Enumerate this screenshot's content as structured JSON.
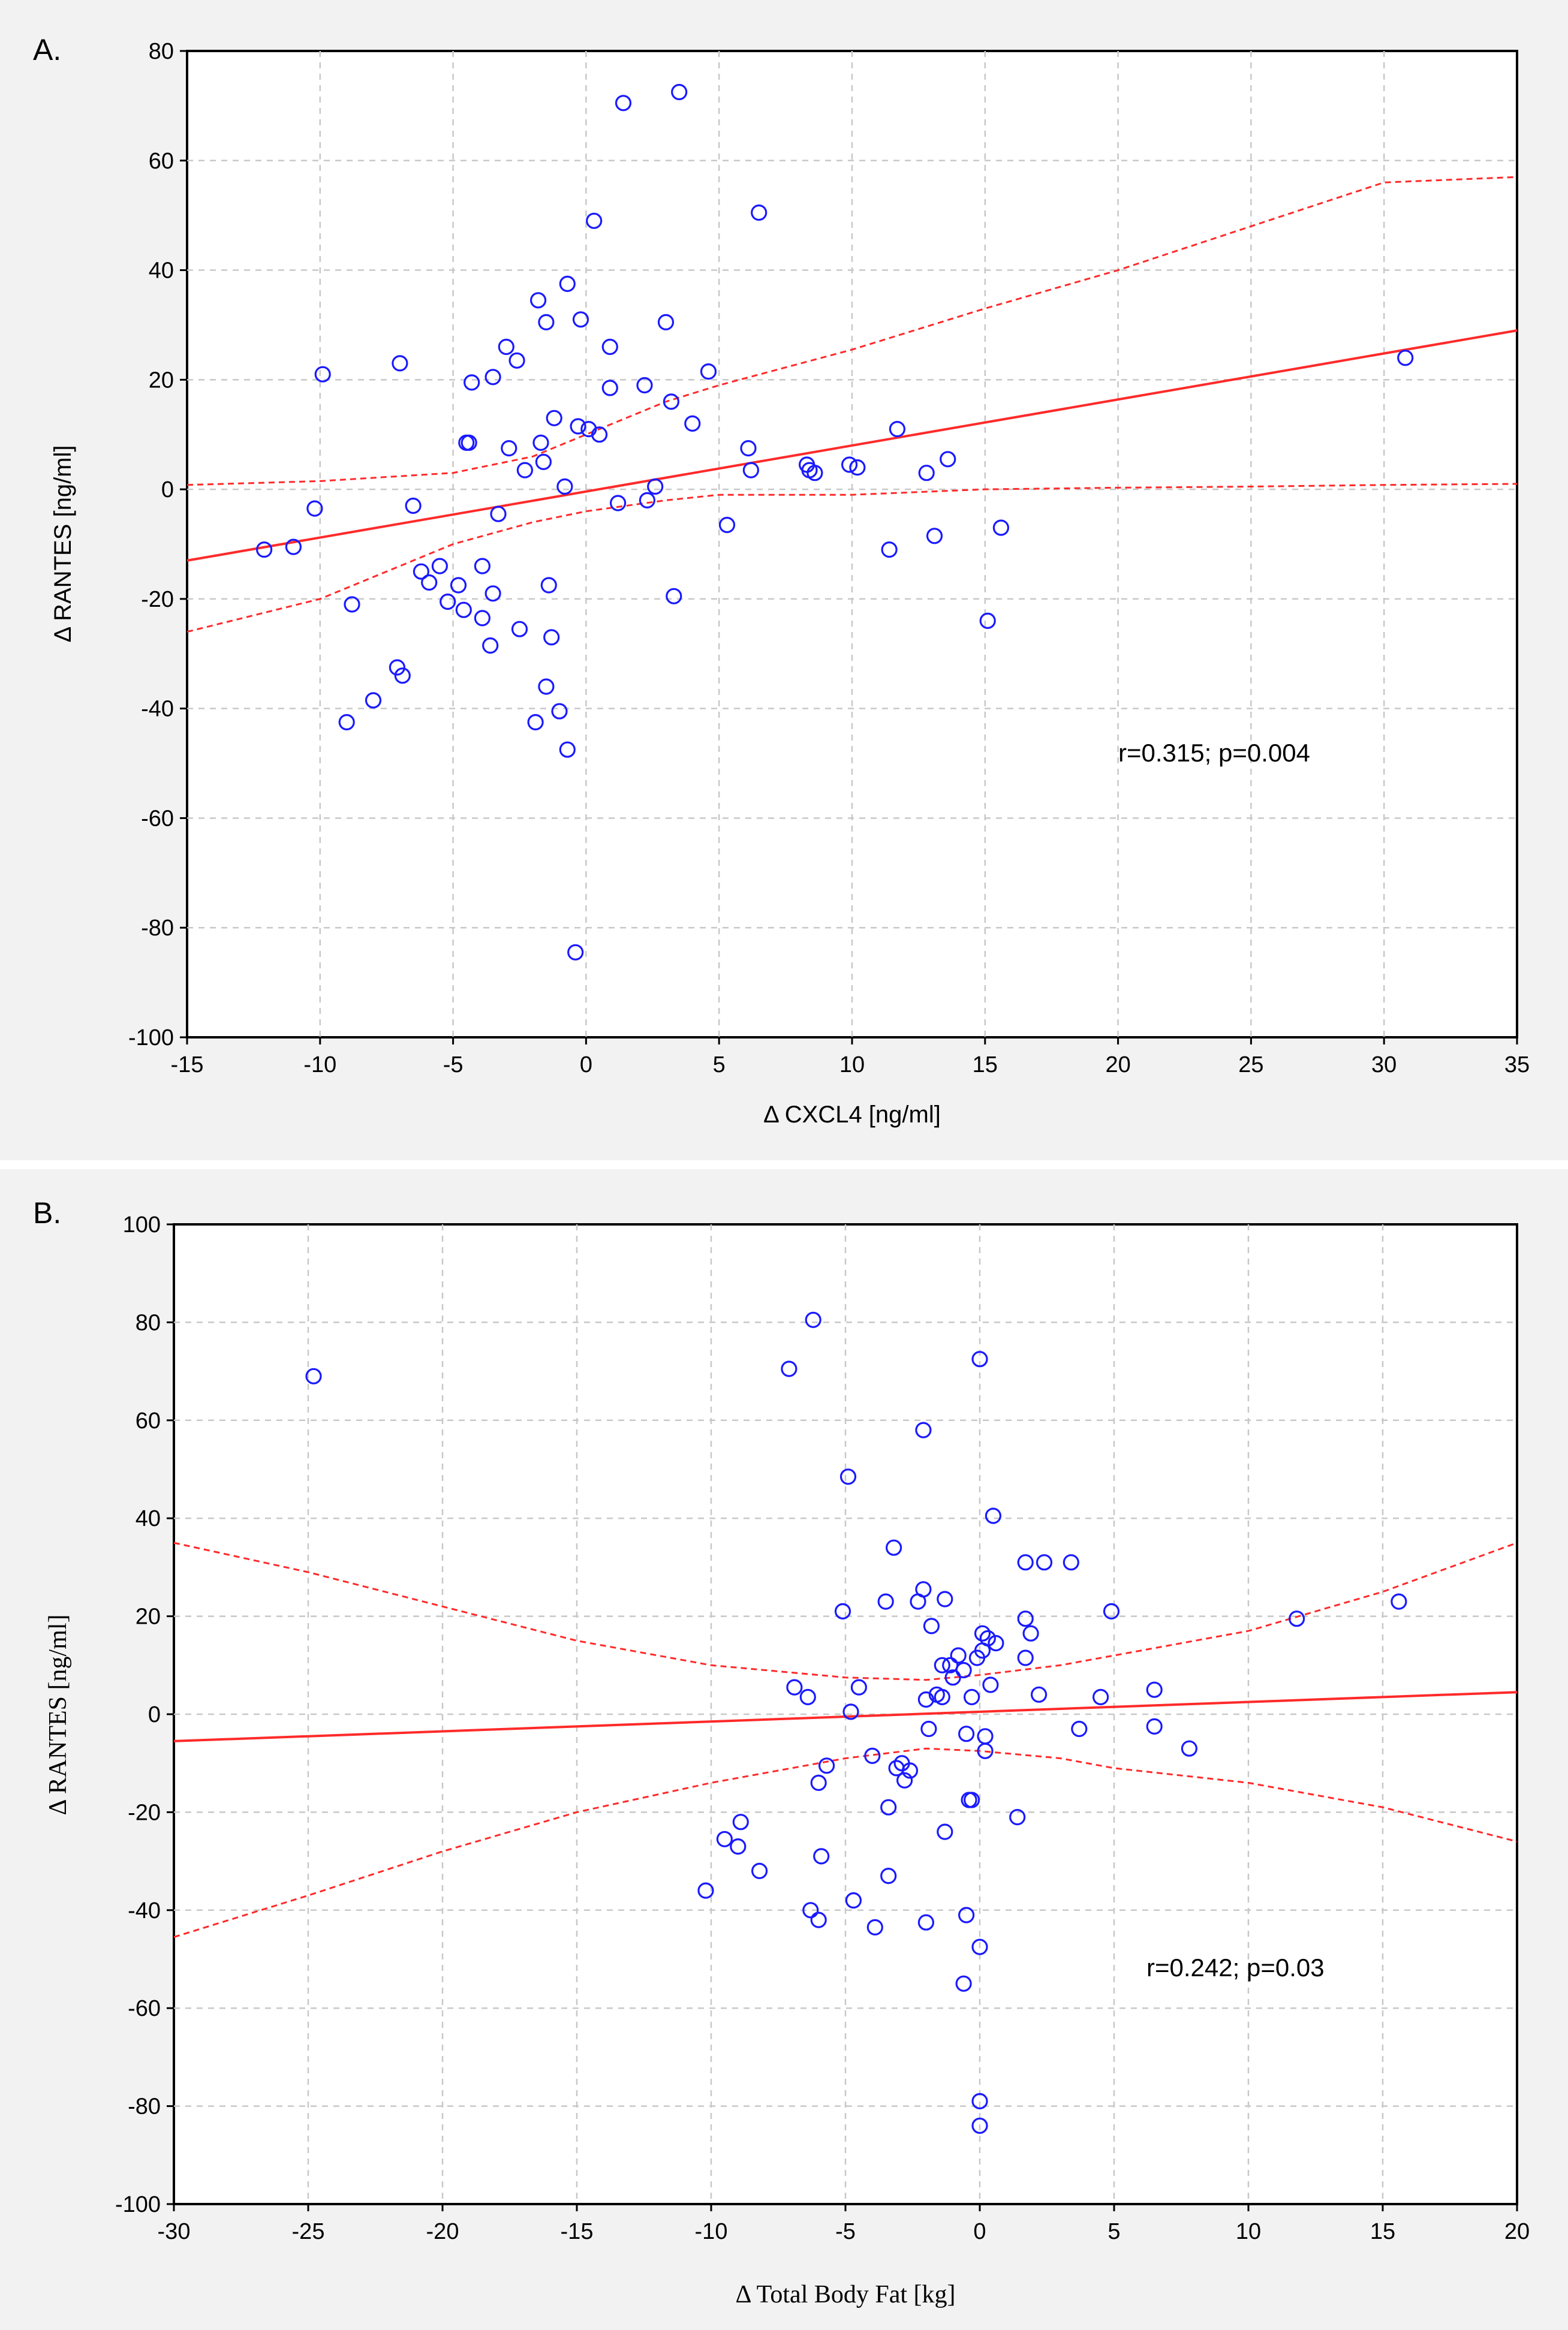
{
  "chart_data": [
    {
      "type": "scatter",
      "panel_label": "A.",
      "xlabel": "Δ CXCL4 [ng/ml]",
      "ylabel": "Δ RANTES [ng/ml]",
      "xlim": [
        -15,
        35
      ],
      "ylim": [
        -100,
        80
      ],
      "xticks": [
        "-15",
        "-10",
        "-5",
        "0",
        "5",
        "10",
        "15",
        "20",
        "25",
        "30",
        "35"
      ],
      "yticks": [
        "-100",
        "-80",
        "-60",
        "-40",
        "-20",
        "0",
        "20",
        "40",
        "60",
        "80"
      ],
      "grid": true,
      "annotation": "r=0.315; p=0.004",
      "fit_line": [
        [
          -15,
          -13
        ],
        [
          35,
          29
        ]
      ],
      "ci_upper": [
        [
          -15,
          0.8
        ],
        [
          -10,
          1.5
        ],
        [
          -5,
          3
        ],
        [
          -2,
          6
        ],
        [
          0,
          10
        ],
        [
          3,
          16
        ],
        [
          5,
          19
        ],
        [
          10,
          25.5
        ],
        [
          15,
          33
        ],
        [
          20,
          40
        ],
        [
          25,
          48
        ],
        [
          30,
          56
        ],
        [
          35,
          57
        ]
      ],
      "ci_lower": [
        [
          -15,
          -26
        ],
        [
          -10,
          -20
        ],
        [
          -5,
          -10
        ],
        [
          -2,
          -6
        ],
        [
          0,
          -4
        ],
        [
          3,
          -2
        ],
        [
          5,
          -1
        ],
        [
          10,
          -1
        ],
        [
          15,
          0
        ],
        [
          20,
          0.3
        ],
        [
          25,
          0.5
        ],
        [
          30,
          0.8
        ],
        [
          35,
          1
        ]
      ],
      "points": [
        [
          -12.1,
          -11
        ],
        [
          -11.0,
          -10.5
        ],
        [
          -10.2,
          -3.5
        ],
        [
          -9.9,
          21
        ],
        [
          -9.0,
          -42.5
        ],
        [
          -8.8,
          -21
        ],
        [
          -8.0,
          -38.5
        ],
        [
          -7.1,
          -32.5
        ],
        [
          -7.0,
          23
        ],
        [
          -6.9,
          -34
        ],
        [
          -6.5,
          -3
        ],
        [
          -6.2,
          -15
        ],
        [
          -5.9,
          -17
        ],
        [
          -5.5,
          -14
        ],
        [
          -5.2,
          -20.5
        ],
        [
          -4.8,
          -17.5
        ],
        [
          -4.6,
          -22
        ],
        [
          -4.5,
          8.5
        ],
        [
          -4.4,
          8.5
        ],
        [
          -4.3,
          19.5
        ],
        [
          -3.9,
          -14
        ],
        [
          -3.9,
          -23.5
        ],
        [
          -3.6,
          -28.5
        ],
        [
          -3.5,
          -19
        ],
        [
          -3.5,
          20.5
        ],
        [
          -3.3,
          -4.5
        ],
        [
          -3.0,
          26
        ],
        [
          -2.9,
          7.5
        ],
        [
          -2.6,
          23.5
        ],
        [
          -2.5,
          -25.5
        ],
        [
          -2.3,
          3.5
        ],
        [
          -1.9,
          -42.5
        ],
        [
          -1.8,
          34.5
        ],
        [
          -1.7,
          8.5
        ],
        [
          -1.6,
          5
        ],
        [
          -1.5,
          30.5
        ],
        [
          -1.5,
          -36
        ],
        [
          -1.4,
          -17.5
        ],
        [
          -1.3,
          -27
        ],
        [
          -1.2,
          13
        ],
        [
          -1.0,
          -40.5
        ],
        [
          -0.8,
          0.5
        ],
        [
          -0.7,
          37.5
        ],
        [
          -0.7,
          -47.5
        ],
        [
          -0.4,
          -84.5
        ],
        [
          -0.3,
          11.5
        ],
        [
          -0.2,
          31
        ],
        [
          0.1,
          11
        ],
        [
          0.3,
          49
        ],
        [
          0.5,
          10
        ],
        [
          0.9,
          26
        ],
        [
          0.9,
          18.5
        ],
        [
          1.2,
          -2.5
        ],
        [
          1.4,
          70.5
        ],
        [
          2.2,
          19
        ],
        [
          2.3,
          -2
        ],
        [
          2.6,
          0.5
        ],
        [
          3.0,
          30.5
        ],
        [
          3.2,
          16
        ],
        [
          3.3,
          -19.5
        ],
        [
          3.5,
          72.5
        ],
        [
          4.0,
          12
        ],
        [
          4.6,
          21.5
        ],
        [
          5.3,
          -6.5
        ],
        [
          6.1,
          7.5
        ],
        [
          6.2,
          3.5
        ],
        [
          6.5,
          50.5
        ],
        [
          8.3,
          4.5
        ],
        [
          8.4,
          3.5
        ],
        [
          8.6,
          3
        ],
        [
          9.9,
          4.5
        ],
        [
          10.2,
          4
        ],
        [
          11.4,
          -11
        ],
        [
          11.7,
          11
        ],
        [
          12.8,
          3
        ],
        [
          13.1,
          -8.5
        ],
        [
          13.6,
          5.5
        ],
        [
          15.1,
          -24
        ],
        [
          15.6,
          -7
        ],
        [
          30.8,
          24
        ]
      ]
    },
    {
      "type": "scatter",
      "panel_label": "B.",
      "xlabel": "Δ  Total Body Fat [kg]",
      "ylabel": "Δ RANTES [ng/ml]",
      "xlim": [
        -30,
        20
      ],
      "ylim": [
        -100,
        100
      ],
      "xticks": [
        "-30",
        "-25",
        "-20",
        "-15",
        "-10",
        "-5",
        "0",
        "5",
        "10",
        "15",
        "20"
      ],
      "yticks": [
        "-100",
        "-80",
        "-60",
        "-40",
        "-20",
        "0",
        "20",
        "40",
        "60",
        "80",
        "100"
      ],
      "grid": true,
      "annotation": "r=0.242; p=0.03",
      "fit_line": [
        [
          -30,
          -5.5
        ],
        [
          20,
          4.5
        ]
      ],
      "ci_upper": [
        [
          -30,
          35
        ],
        [
          -25,
          29
        ],
        [
          -20,
          22
        ],
        [
          -15,
          15
        ],
        [
          -10,
          10
        ],
        [
          -5,
          7.5
        ],
        [
          -2,
          7
        ],
        [
          0,
          8
        ],
        [
          3,
          10
        ],
        [
          5,
          12
        ],
        [
          10,
          17
        ],
        [
          15,
          25
        ],
        [
          20,
          35
        ]
      ],
      "ci_lower": [
        [
          -30,
          -45.5
        ],
        [
          -25,
          -37
        ],
        [
          -20,
          -28
        ],
        [
          -15,
          -20
        ],
        [
          -10,
          -14
        ],
        [
          -5,
          -9
        ],
        [
          -2,
          -7
        ],
        [
          0,
          -7.5
        ],
        [
          3,
          -9
        ],
        [
          5,
          -11
        ],
        [
          10,
          -14
        ],
        [
          15,
          -19
        ],
        [
          20,
          -26
        ]
      ],
      "points": [
        [
          -24.8,
          69
        ],
        [
          -10.2,
          -36
        ],
        [
          -9.5,
          -25.5
        ],
        [
          -9.0,
          -27
        ],
        [
          -8.9,
          -22
        ],
        [
          -8.2,
          -32
        ],
        [
          -7.1,
          70.5
        ],
        [
          -6.9,
          5.5
        ],
        [
          -6.4,
          3.5
        ],
        [
          -6.3,
          -40
        ],
        [
          -6.2,
          80.5
        ],
        [
          -6.0,
          -42
        ],
        [
          -6.0,
          -14
        ],
        [
          -5.9,
          -29
        ],
        [
          -5.7,
          -10.5
        ],
        [
          -5.1,
          21
        ],
        [
          -4.9,
          48.5
        ],
        [
          -4.8,
          0.5
        ],
        [
          -4.7,
          -38
        ],
        [
          -4.5,
          5.5
        ],
        [
          -4.0,
          -8.5
        ],
        [
          -3.9,
          -43.5
        ],
        [
          -3.5,
          23
        ],
        [
          -3.4,
          -33
        ],
        [
          -3.4,
          -19
        ],
        [
          -3.2,
          34
        ],
        [
          -3.1,
          -11
        ],
        [
          -2.9,
          -10
        ],
        [
          -2.8,
          -13.5
        ],
        [
          -2.6,
          -11.5
        ],
        [
          -2.3,
          23
        ],
        [
          -2.1,
          58
        ],
        [
          -2.1,
          25.5
        ],
        [
          -2.0,
          3
        ],
        [
          -2.0,
          -42.5
        ],
        [
          -1.9,
          -3
        ],
        [
          -1.8,
          18
        ],
        [
          -1.6,
          4
        ],
        [
          -1.4,
          3.5
        ],
        [
          -1.4,
          10
        ],
        [
          -1.3,
          23.5
        ],
        [
          -1.3,
          -24
        ],
        [
          -1.1,
          10
        ],
        [
          -1.0,
          7.5
        ],
        [
          -0.8,
          12
        ],
        [
          -0.6,
          -55
        ],
        [
          -0.6,
          9
        ],
        [
          -0.5,
          -4
        ],
        [
          -0.5,
          -41
        ],
        [
          -0.4,
          -17.5
        ],
        [
          -0.3,
          -17.5
        ],
        [
          -0.3,
          3.5
        ],
        [
          -0.1,
          11.5
        ],
        [
          0.0,
          72.5
        ],
        [
          0.0,
          -79
        ],
        [
          0.0,
          -84
        ],
        [
          0.0,
          -47.5
        ],
        [
          0.1,
          16.5
        ],
        [
          0.1,
          13
        ],
        [
          0.2,
          -4.5
        ],
        [
          0.2,
          -7.5
        ],
        [
          0.3,
          15.5
        ],
        [
          0.4,
          6
        ],
        [
          0.5,
          40.5
        ],
        [
          0.6,
          14.5
        ],
        [
          1.4,
          -21
        ],
        [
          1.7,
          31
        ],
        [
          1.7,
          19.5
        ],
        [
          1.7,
          11.5
        ],
        [
          1.9,
          16.5
        ],
        [
          2.2,
          4
        ],
        [
          2.4,
          31
        ],
        [
          3.4,
          31
        ],
        [
          3.7,
          -3
        ],
        [
          4.5,
          3.5
        ],
        [
          4.9,
          21
        ],
        [
          6.5,
          5
        ],
        [
          6.5,
          -2.5
        ],
        [
          7.8,
          -7
        ],
        [
          11.8,
          19.5
        ],
        [
          15.6,
          23
        ]
      ]
    }
  ]
}
